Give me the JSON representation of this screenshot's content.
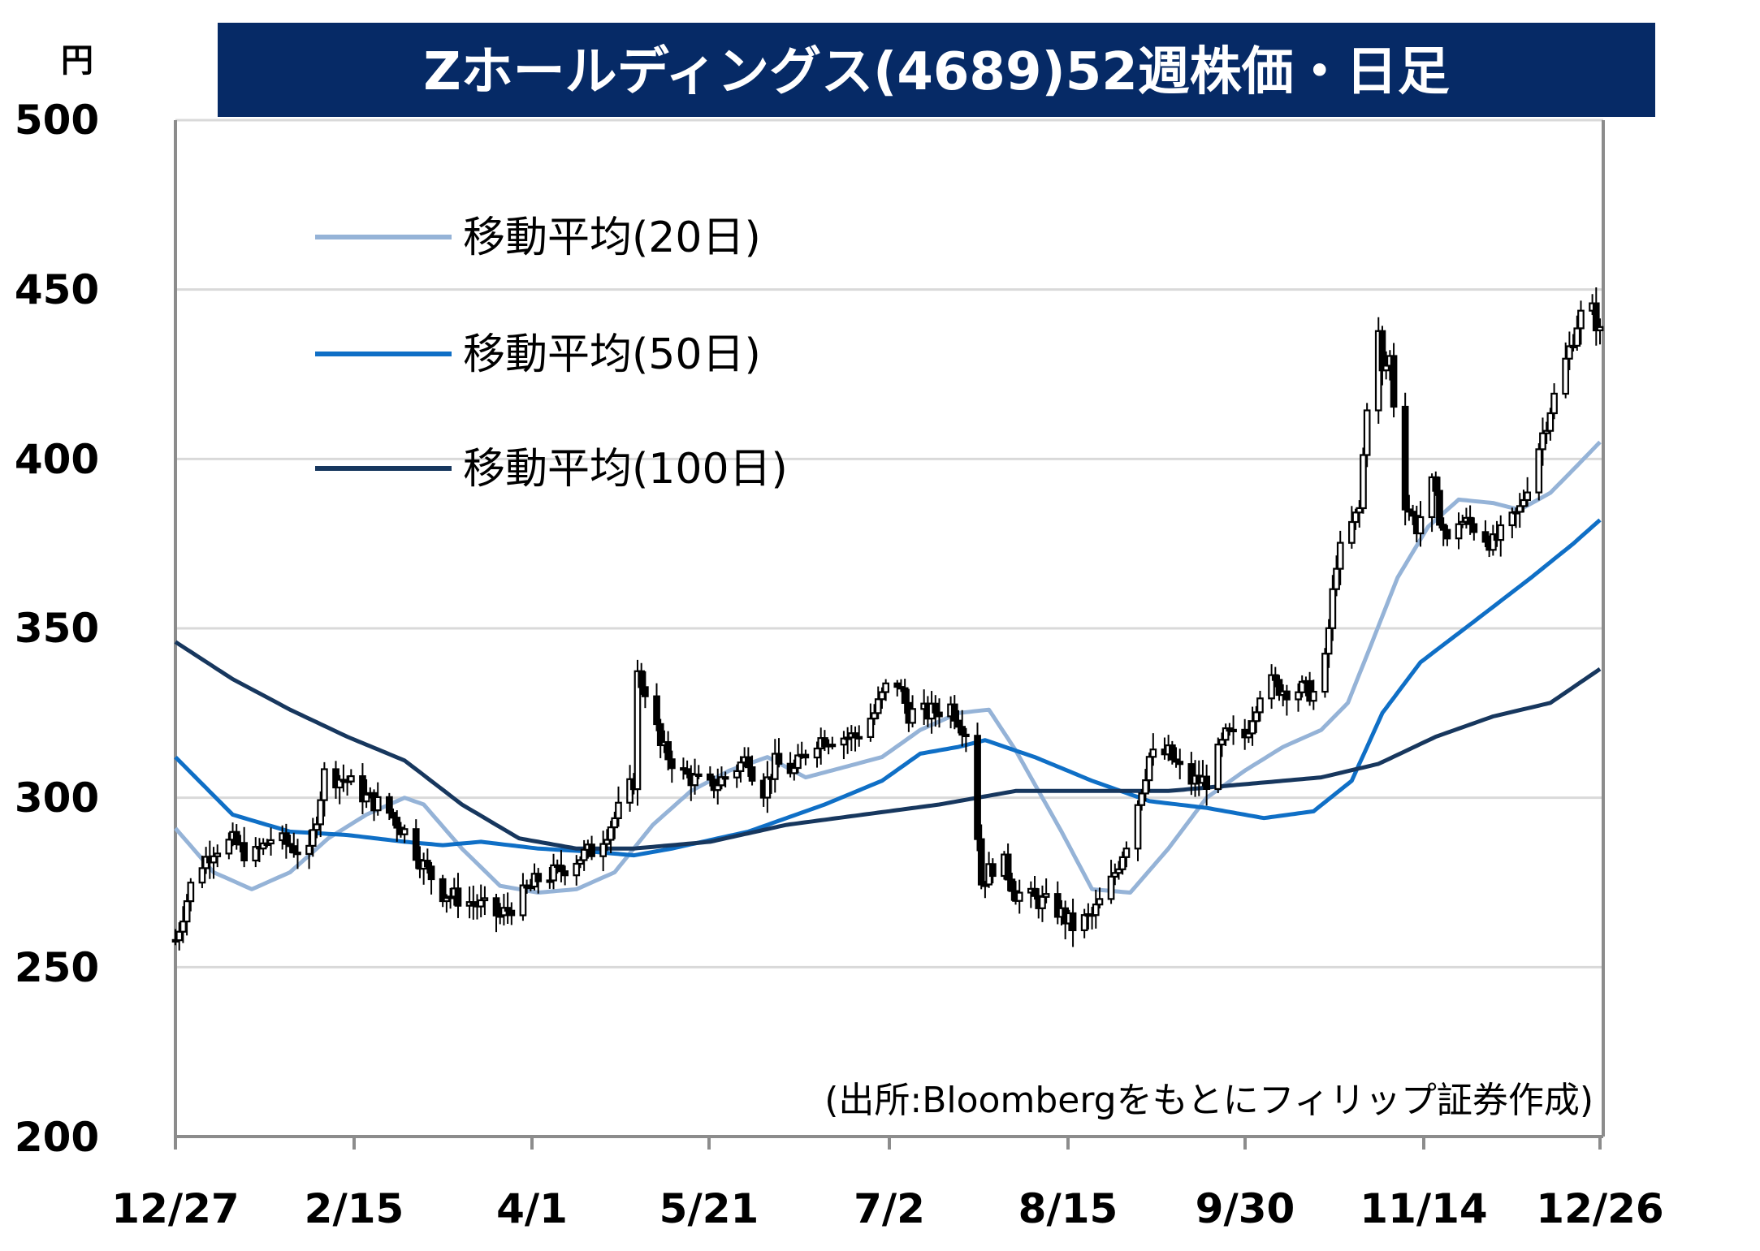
{
  "title": "Zホールディングス(4689)52週株価・日足",
  "unit_label": "円",
  "source": "(出所:Bloombergをもとにフィリップ証券作成)",
  "colors": {
    "title_background": "#062a66",
    "ma20": "#95b3d7",
    "ma50": "#0f6fc6",
    "ma100": "#17375e",
    "candle_up": "#ffffff",
    "candle_down": "#000000",
    "gridline": "#d9d9d9"
  },
  "chart_data": {
    "type": "candlestick",
    "ylim": [
      200,
      500
    ],
    "yticks": [
      "200",
      "250",
      "300",
      "350",
      "400",
      "450",
      "500"
    ],
    "xticks": [
      "12/27",
      "2/15",
      "4/1",
      "5/21",
      "7/2",
      "8/15",
      "9/30",
      "11/14",
      "12/26"
    ],
    "grid": true,
    "legend_position": "top-left",
    "daily_close_approx": [
      [
        0,
        258
      ],
      [
        5,
        278
      ],
      [
        10,
        285
      ],
      [
        15,
        287
      ],
      [
        20,
        282
      ],
      [
        25,
        288
      ],
      [
        30,
        286
      ],
      [
        35,
        283
      ],
      [
        39,
        307
      ],
      [
        45,
        305
      ],
      [
        50,
        300
      ],
      [
        55,
        297
      ],
      [
        60,
        290
      ],
      [
        65,
        280
      ],
      [
        70,
        272
      ],
      [
        75,
        270
      ],
      [
        80,
        268
      ],
      [
        85,
        265
      ],
      [
        90,
        270
      ],
      [
        95,
        276
      ],
      [
        100,
        278
      ],
      [
        105,
        282
      ],
      [
        110,
        285
      ],
      [
        115,
        294
      ],
      [
        120,
        305
      ],
      [
        121,
        336
      ],
      [
        124,
        330
      ],
      [
        127,
        315
      ],
      [
        133,
        307
      ],
      [
        140,
        303
      ],
      [
        145,
        307
      ],
      [
        150,
        312
      ],
      [
        153,
        300
      ],
      [
        157,
        310
      ],
      [
        162,
        308
      ],
      [
        167,
        317
      ],
      [
        172,
        318
      ],
      [
        178,
        318
      ],
      [
        183,
        325
      ],
      [
        188,
        337
      ],
      [
        192,
        325
      ],
      [
        197,
        325
      ],
      [
        203,
        327
      ],
      [
        208,
        318
      ],
      [
        211,
        275
      ],
      [
        216,
        283
      ],
      [
        220,
        272
      ],
      [
        225,
        270
      ],
      [
        230,
        268
      ],
      [
        235,
        262
      ],
      [
        240,
        265
      ],
      [
        245,
        275
      ],
      [
        250,
        290
      ],
      [
        255,
        312
      ],
      [
        260,
        313
      ],
      [
        265,
        305
      ],
      [
        270,
        305
      ],
      [
        275,
        318
      ],
      [
        280,
        318
      ],
      [
        285,
        335
      ],
      [
        290,
        332
      ],
      [
        295,
        332
      ],
      [
        300,
        330
      ],
      [
        304,
        370
      ],
      [
        307,
        378
      ],
      [
        310,
        385
      ],
      [
        314,
        448
      ],
      [
        316,
        425
      ],
      [
        318,
        430
      ],
      [
        321,
        390
      ],
      [
        325,
        380
      ],
      [
        329,
        392
      ],
      [
        333,
        375
      ],
      [
        336,
        382
      ],
      [
        340,
        380
      ],
      [
        345,
        375
      ],
      [
        349,
        380
      ],
      [
        352,
        385
      ],
      [
        356,
        400
      ],
      [
        360,
        415
      ],
      [
        363,
        425
      ],
      [
        367,
        440
      ],
      [
        370,
        447
      ],
      [
        373,
        437
      ]
    ],
    "series": [
      {
        "name": "移動平均(20日)",
        "values": [
          [
            0,
            291
          ],
          [
            10,
            278
          ],
          [
            20,
            273
          ],
          [
            30,
            278
          ],
          [
            40,
            288
          ],
          [
            50,
            295
          ],
          [
            60,
            300
          ],
          [
            65,
            298
          ],
          [
            75,
            285
          ],
          [
            85,
            274
          ],
          [
            95,
            272
          ],
          [
            105,
            273
          ],
          [
            115,
            278
          ],
          [
            125,
            292
          ],
          [
            135,
            302
          ],
          [
            145,
            308
          ],
          [
            155,
            312
          ],
          [
            165,
            306
          ],
          [
            175,
            309
          ],
          [
            185,
            312
          ],
          [
            195,
            320
          ],
          [
            205,
            325
          ],
          [
            213,
            326
          ],
          [
            220,
            314
          ],
          [
            232,
            290
          ],
          [
            240,
            273
          ],
          [
            250,
            272
          ],
          [
            260,
            285
          ],
          [
            270,
            300
          ],
          [
            280,
            308
          ],
          [
            290,
            315
          ],
          [
            300,
            320
          ],
          [
            307,
            328
          ],
          [
            313,
            345
          ],
          [
            320,
            365
          ],
          [
            328,
            380
          ],
          [
            336,
            388
          ],
          [
            345,
            387
          ],
          [
            352,
            385
          ],
          [
            360,
            390
          ],
          [
            367,
            398
          ],
          [
            373,
            405
          ]
        ]
      },
      {
        "name": "移動平均(50日)",
        "values": [
          [
            0,
            312
          ],
          [
            15,
            295
          ],
          [
            30,
            290
          ],
          [
            45,
            289
          ],
          [
            60,
            287
          ],
          [
            70,
            286
          ],
          [
            80,
            287
          ],
          [
            95,
            285
          ],
          [
            110,
            284
          ],
          [
            120,
            283
          ],
          [
            130,
            285
          ],
          [
            150,
            290
          ],
          [
            170,
            298
          ],
          [
            185,
            305
          ],
          [
            195,
            313
          ],
          [
            205,
            315
          ],
          [
            212,
            317
          ],
          [
            225,
            312
          ],
          [
            240,
            305
          ],
          [
            255,
            299
          ],
          [
            270,
            297
          ],
          [
            285,
            294
          ],
          [
            298,
            296
          ],
          [
            308,
            305
          ],
          [
            316,
            325
          ],
          [
            326,
            340
          ],
          [
            340,
            352
          ],
          [
            355,
            365
          ],
          [
            366,
            375
          ],
          [
            373,
            382
          ]
        ]
      },
      {
        "name": "移動平均(100日)",
        "values": [
          [
            0,
            346
          ],
          [
            15,
            335
          ],
          [
            30,
            326
          ],
          [
            45,
            318
          ],
          [
            60,
            311
          ],
          [
            75,
            298
          ],
          [
            90,
            288
          ],
          [
            105,
            285
          ],
          [
            120,
            285
          ],
          [
            140,
            287
          ],
          [
            160,
            292
          ],
          [
            180,
            295
          ],
          [
            200,
            298
          ],
          [
            220,
            302
          ],
          [
            240,
            302
          ],
          [
            260,
            302
          ],
          [
            280,
            304
          ],
          [
            300,
            306
          ],
          [
            315,
            310
          ],
          [
            330,
            318
          ],
          [
            345,
            324
          ],
          [
            360,
            328
          ],
          [
            373,
            338
          ]
        ]
      }
    ]
  }
}
